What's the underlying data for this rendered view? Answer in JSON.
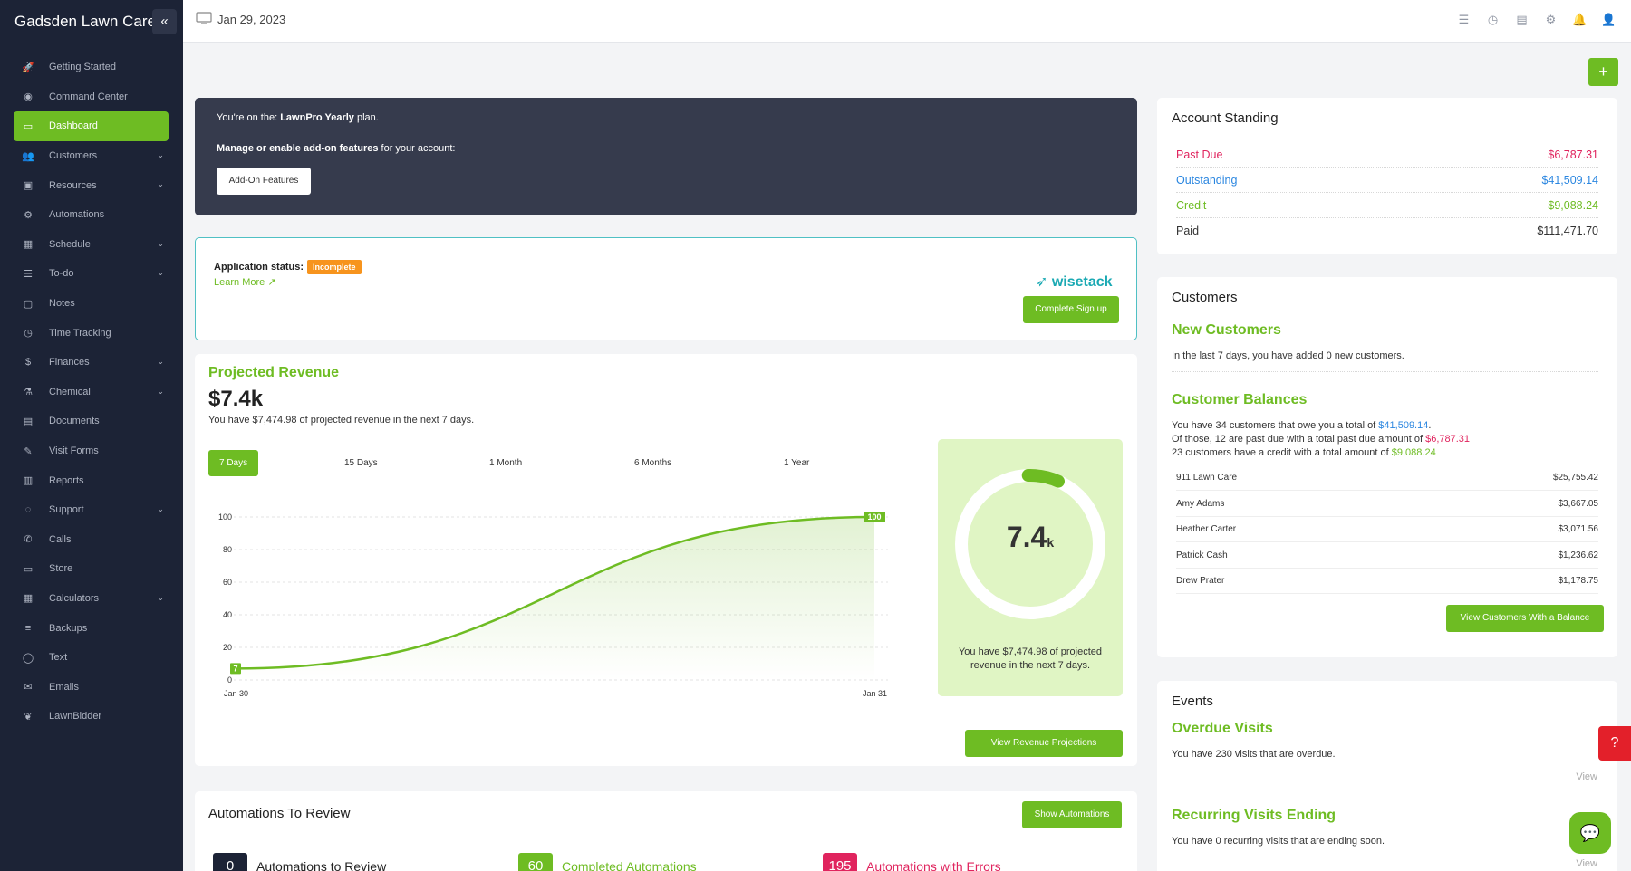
{
  "app": {
    "title": "Gadsden Lawn Care",
    "collapse_icon": "«"
  },
  "topbar": {
    "date": "Jan 29, 2023",
    "icons": [
      "☰",
      "◷",
      "▤",
      "⚙",
      "🔔",
      "👤"
    ]
  },
  "sidebar": {
    "items": [
      {
        "label": "Getting Started",
        "icon": "🚀",
        "chev": false
      },
      {
        "label": "Command Center",
        "icon": "◉",
        "chev": false
      },
      {
        "label": "Dashboard",
        "icon": "▭",
        "chev": false,
        "active": true
      },
      {
        "label": "Customers",
        "icon": "👥",
        "chev": true
      },
      {
        "label": "Resources",
        "icon": "▣",
        "chev": true
      },
      {
        "label": "Automations",
        "icon": "⚙",
        "chev": false
      },
      {
        "label": "Schedule",
        "icon": "▦",
        "chev": true
      },
      {
        "label": "To-do",
        "icon": "☰",
        "chev": true
      },
      {
        "label": "Notes",
        "icon": "▢",
        "chev": false
      },
      {
        "label": "Time Tracking",
        "icon": "◷",
        "chev": false
      },
      {
        "label": "Finances",
        "icon": "$",
        "chev": true
      },
      {
        "label": "Chemical",
        "icon": "⚗",
        "chev": true
      },
      {
        "label": "Documents",
        "icon": "▤",
        "chev": false
      },
      {
        "label": "Visit Forms",
        "icon": "✎",
        "chev": false
      },
      {
        "label": "Reports",
        "icon": "▥",
        "chev": false
      },
      {
        "label": "Support",
        "icon": "◌",
        "chev": true
      },
      {
        "label": "Calls",
        "icon": "✆",
        "chev": false
      },
      {
        "label": "Store",
        "icon": "▭",
        "chev": false
      },
      {
        "label": "Calculators",
        "icon": "▦",
        "chev": true
      },
      {
        "label": "Backups",
        "icon": "≡",
        "chev": false
      },
      {
        "label": "Text",
        "icon": "◯",
        "chev": false
      },
      {
        "label": "Emails",
        "icon": "✉",
        "chev": false
      },
      {
        "label": "LawnBidder",
        "icon": "❦",
        "chev": false
      }
    ]
  },
  "plan": {
    "line1_pre": "You're on the: ",
    "line1_bold": "LawnPro Yearly",
    "line1_post": " plan.",
    "line2_bold": "Manage or enable add-on features",
    "line2_post": " for your account:",
    "addon_button": "Add-On Features"
  },
  "application": {
    "status_label": "Application status:",
    "status_badge": "Incomplete",
    "learn_more": "Learn More",
    "brand": "wisetack",
    "complete_button": "Complete Sign up"
  },
  "revenue": {
    "title": "Projected Revenue",
    "amount": "$7.4k",
    "description": "You have $7,474.98 of projected revenue in the next 7 days.",
    "ranges": [
      "7 Days",
      "15 Days",
      "1 Month",
      "6 Months",
      "1 Year"
    ],
    "gauge_value": "7.4",
    "gauge_unit": "k",
    "gauge_text": "You have $7,474.98 of projected revenue in the next 7 days.",
    "view_button": "View Revenue Projections"
  },
  "chart_data": {
    "type": "area",
    "x": [
      "Jan 30",
      "Jan 31"
    ],
    "y_ticks": [
      0,
      20,
      40,
      60,
      80,
      100
    ],
    "ylim": [
      0,
      100
    ],
    "series": [
      {
        "values": [
          7,
          100
        ]
      }
    ],
    "point_labels": [
      "7",
      "100"
    ],
    "color": "#6ebc23"
  },
  "automations": {
    "title": "Automations To Review",
    "show_button": "Show Automations",
    "items": [
      {
        "count": "0",
        "label": "Automations to Review",
        "color": "#1c2336",
        "text_color": "#222"
      },
      {
        "count": "60",
        "label": "Completed Automations",
        "color": "#6ebc23",
        "text_color": "#6ebc23"
      },
      {
        "count": "195",
        "label": "Automations with Errors",
        "color": "#e0245e",
        "text_color": "#e0245e"
      }
    ]
  },
  "account": {
    "title": "Account Standing",
    "rows": [
      {
        "label": "Past Due",
        "value": "$6,787.31",
        "color": "#e0245e"
      },
      {
        "label": "Outstanding",
        "value": "$41,509.14",
        "color": "#2a86e0"
      },
      {
        "label": "Credit",
        "value": "$9,088.24",
        "color": "#6ebc23"
      },
      {
        "label": "Paid",
        "value": "$111,471.70",
        "color": "#333"
      }
    ]
  },
  "customers": {
    "title": "Customers",
    "new_title": "New Customers",
    "new_text": "In the last 7 days, you have added 0 new customers.",
    "bal_title": "Customer Balances",
    "bal_l1_pre": "You have 34 customers that owe you a total of ",
    "bal_l1_val": "$41,509.14",
    "bal_l1_post": ".",
    "bal_l2_pre": "Of those, 12 are past due with a total past due amount of ",
    "bal_l2_val": "$6,787.31",
    "bal_l3_pre": "23 customers have a credit with a total amount of ",
    "bal_l3_val": "$9,088.24",
    "balances": [
      {
        "name": "911 Lawn Care",
        "amount": "$25,755.42"
      },
      {
        "name": "Amy Adams",
        "amount": "$3,667.05"
      },
      {
        "name": "Heather Carter",
        "amount": "$3,071.56"
      },
      {
        "name": "Patrick Cash",
        "amount": "$1,236.62"
      },
      {
        "name": "Drew Prater",
        "amount": "$1,178.75"
      }
    ],
    "view_button": "View Customers With a Balance"
  },
  "events": {
    "title": "Events",
    "overdue_title": "Overdue Visits",
    "overdue_text": "You have 230 visits that are overdue.",
    "view1": "View",
    "recurring_title": "Recurring Visits Ending",
    "recurring_text": "You have 0 recurring visits that are ending soon.",
    "view2": "View"
  },
  "widgets": {
    "help_icon": "?",
    "chat_icon": "💬",
    "plus": "+"
  }
}
